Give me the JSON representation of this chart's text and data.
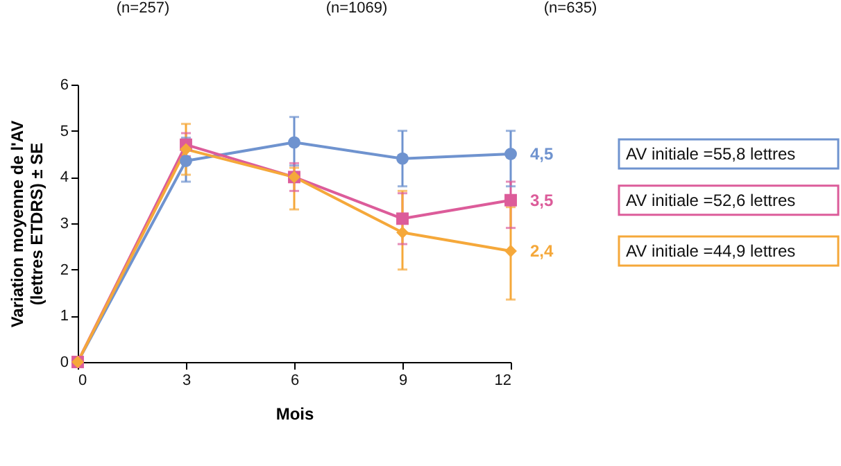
{
  "chart_data": {
    "type": "line",
    "xlabel": "Mois",
    "ylabel": "Variation moyenne de l'AV (lettres ETDRS) ± SE",
    "x": [
      0,
      3,
      6,
      9,
      12
    ],
    "xlim": [
      0,
      12
    ],
    "xticks": [
      0,
      3,
      6,
      9,
      12
    ],
    "ylim": [
      0,
      6
    ],
    "yticks": [
      0,
      1,
      2,
      3,
      4,
      5,
      6
    ],
    "legend": "right",
    "annotations": [
      "(n=257)",
      "(n=1069)",
      "(n=635)"
    ],
    "series": [
      {
        "name": "AV initiale =55,8 lettres",
        "color": "#6f93cf",
        "marker": "circle",
        "values": [
          0,
          4.35,
          4.75,
          4.4,
          4.5
        ],
        "errors": [
          null,
          [
            3.9,
            4.85
          ],
          [
            4.25,
            5.3
          ],
          [
            3.8,
            5.0
          ],
          [
            3.8,
            5.0
          ]
        ],
        "value_labels": [
          null,
          null,
          null,
          null,
          "4,5"
        ]
      },
      {
        "name": "AV initiale =52,6 lettres",
        "color": "#dc5c9a",
        "marker": "square",
        "values": [
          0,
          4.7,
          4.0,
          3.1,
          3.5
        ],
        "errors": [
          null,
          [
            4.45,
            4.95
          ],
          [
            3.7,
            4.3
          ],
          [
            2.55,
            3.65
          ],
          [
            2.9,
            3.9
          ]
        ],
        "value_labels": [
          null,
          null,
          null,
          null,
          "3,5"
        ]
      },
      {
        "name": "AV initiale =44,9 lettres",
        "color": "#f5a83a",
        "marker": "diamond",
        "values": [
          0,
          4.6,
          4.0,
          2.8,
          2.4
        ],
        "errors": [
          null,
          [
            4.05,
            5.15
          ],
          [
            3.3,
            4.2
          ],
          [
            2.0,
            3.7
          ],
          [
            1.35,
            3.35
          ]
        ],
        "value_labels": [
          null,
          null,
          null,
          null,
          "2,4"
        ]
      }
    ]
  }
}
